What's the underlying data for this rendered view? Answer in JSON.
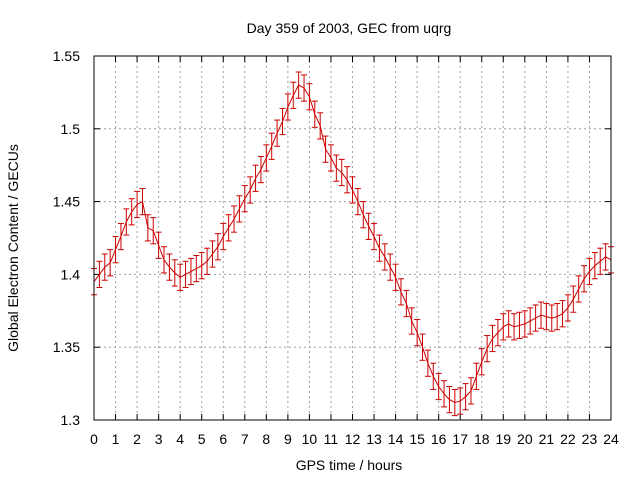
{
  "chart_data": {
    "type": "line",
    "title": "Day 359 of 2003, GEC from uqrg",
    "xlabel": "GPS time / hours",
    "ylabel": "Global Electron Content / GECUs",
    "xlim": [
      0,
      24
    ],
    "ylim": [
      1.3,
      1.55
    ],
    "x_ticks": [
      "0",
      "1",
      "2",
      "3",
      "4",
      "5",
      "6",
      "7",
      "8",
      "9",
      "10",
      "11",
      "12",
      "13",
      "14",
      "15",
      "16",
      "17",
      "18",
      "19",
      "20",
      "21",
      "22",
      "23",
      "24"
    ],
    "y_ticks": [
      "1.3",
      "1.35",
      "1.4",
      "1.45",
      "1.5",
      "1.55"
    ],
    "grid": true,
    "series_color": "#cc0000",
    "error_bar": 0.009,
    "series": [
      {
        "x": [
          0.0,
          0.25,
          0.5,
          0.75,
          1.0,
          1.25,
          1.5,
          1.75,
          2.0,
          2.25,
          2.5,
          2.75,
          3.0,
          3.25,
          3.5,
          3.75,
          4.0,
          4.25,
          4.5,
          4.75,
          5.0,
          5.25,
          5.5,
          5.75,
          6.0,
          6.25,
          6.5,
          6.75,
          7.0,
          7.25,
          7.5,
          7.75,
          8.0,
          8.25,
          8.5,
          8.75,
          9.0,
          9.25,
          9.5,
          9.75,
          10.0,
          10.25,
          10.5,
          10.75,
          11.0,
          11.25,
          11.5,
          11.75,
          12.0,
          12.25,
          12.5,
          12.75,
          13.0,
          13.25,
          13.5,
          13.75,
          14.0,
          14.25,
          14.5,
          14.75,
          15.0,
          15.25,
          15.5,
          15.75,
          16.0,
          16.25,
          16.5,
          16.75,
          17.0,
          17.25,
          17.5,
          17.75,
          18.0,
          18.25,
          18.5,
          18.75,
          19.0,
          19.25,
          19.5,
          19.75,
          20.0,
          20.25,
          20.5,
          20.75,
          21.0,
          21.25,
          21.5,
          21.75,
          22.0,
          22.25,
          22.5,
          22.75,
          23.0,
          23.25,
          23.5,
          23.75,
          24.0
        ],
        "y": [
          1.395,
          1.4,
          1.405,
          1.408,
          1.417,
          1.426,
          1.436,
          1.443,
          1.448,
          1.45,
          1.432,
          1.43,
          1.42,
          1.41,
          1.405,
          1.401,
          1.398,
          1.4,
          1.402,
          1.404,
          1.406,
          1.409,
          1.414,
          1.419,
          1.426,
          1.432,
          1.438,
          1.445,
          1.452,
          1.458,
          1.466,
          1.472,
          1.48,
          1.488,
          1.497,
          1.505,
          1.515,
          1.523,
          1.53,
          1.528,
          1.522,
          1.51,
          1.502,
          1.486,
          1.48,
          1.473,
          1.47,
          1.465,
          1.458,
          1.45,
          1.441,
          1.433,
          1.426,
          1.418,
          1.412,
          1.405,
          1.398,
          1.388,
          1.38,
          1.368,
          1.36,
          1.35,
          1.339,
          1.33,
          1.323,
          1.318,
          1.314,
          1.312,
          1.313,
          1.316,
          1.32,
          1.33,
          1.34,
          1.349,
          1.356,
          1.36,
          1.364,
          1.366,
          1.364,
          1.365,
          1.366,
          1.368,
          1.37,
          1.372,
          1.371,
          1.37,
          1.371,
          1.373,
          1.377,
          1.383,
          1.39,
          1.397,
          1.402,
          1.406,
          1.409,
          1.412,
          1.41
        ]
      }
    ]
  }
}
